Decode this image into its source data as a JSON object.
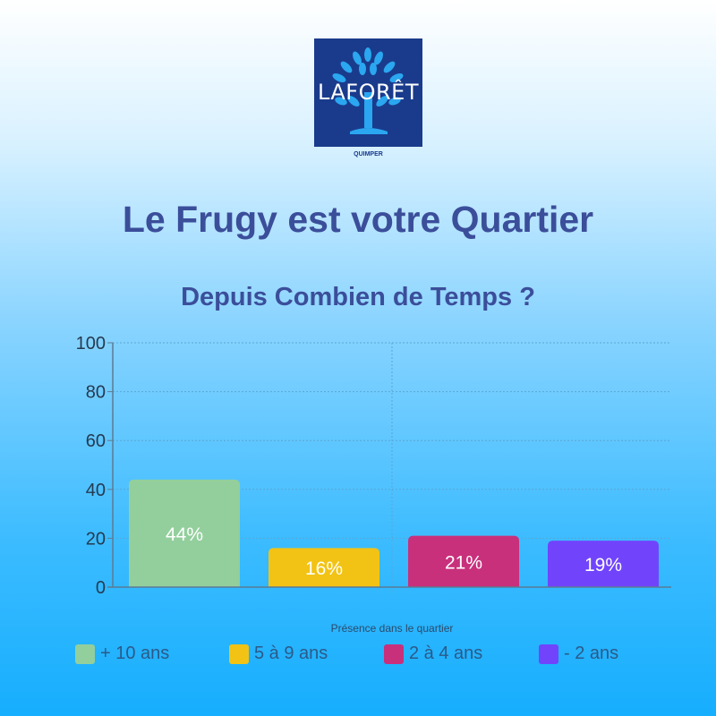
{
  "logo": {
    "brand": "LAFORÊT",
    "location": "QUIMPER",
    "background": "#1a3b8c",
    "tree_color": "#2aa7f0"
  },
  "header": {
    "title": "Le Frugy est votre Quartier",
    "subtitle": "Depuis Combien de Temps ?"
  },
  "chart_data": {
    "type": "bar",
    "title": "Depuis Combien de Temps ?",
    "xlabel": "Présence dans le quartier",
    "ylabel": "",
    "ylim": [
      0,
      100
    ],
    "yticks": [
      "0",
      "20",
      "40",
      "60",
      "80",
      "100"
    ],
    "grid": true,
    "legend_placement": "bottom",
    "categories": [
      "+ 10 ans",
      "5 à 9 ans",
      "2 à 4 ans",
      "- 2 ans"
    ],
    "values": [
      44,
      16,
      21,
      19
    ],
    "data_labels": [
      "44%",
      "16%",
      "21%",
      "19%"
    ],
    "colors": [
      "#93cf9c",
      "#f2c314",
      "#c8307c",
      "#7144fc"
    ]
  }
}
